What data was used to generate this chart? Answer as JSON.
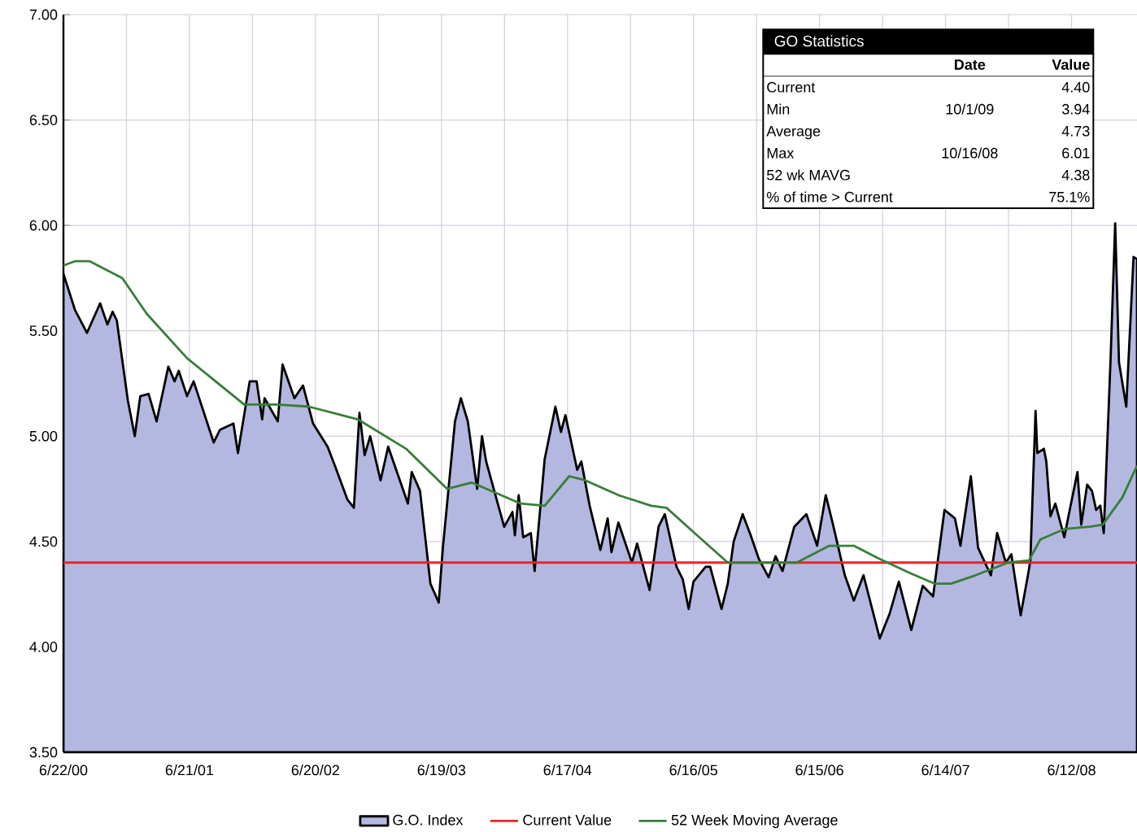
{
  "chart_data": {
    "type": "line",
    "xlim": [
      "2000-06-22",
      "2008-12-18"
    ],
    "ylim": [
      3.5,
      7.0
    ],
    "xticks": [
      {
        "value": "2000-06-22",
        "label": "6/22/00"
      },
      {
        "value": "2001-06-21",
        "label": "6/21/01"
      },
      {
        "value": "2002-06-20",
        "label": "6/20/02"
      },
      {
        "value": "2003-06-19",
        "label": "6/19/03"
      },
      {
        "value": "2004-06-17",
        "label": "6/17/04"
      },
      {
        "value": "2005-06-16",
        "label": "6/16/05"
      },
      {
        "value": "2006-06-15",
        "label": "6/15/06"
      },
      {
        "value": "2007-06-14",
        "label": "6/14/07"
      },
      {
        "value": "2008-06-12",
        "label": "6/12/08"
      }
    ],
    "yticks": [
      {
        "value": 3.5,
        "label": "3.50"
      },
      {
        "value": 4.0,
        "label": "4.00"
      },
      {
        "value": 4.5,
        "label": "4.50"
      },
      {
        "value": 5.0,
        "label": "5.00"
      },
      {
        "value": 5.5,
        "label": "5.50"
      },
      {
        "value": 6.0,
        "label": "6.00"
      },
      {
        "value": 6.5,
        "label": "6.50"
      },
      {
        "value": 7.0,
        "label": "7.00"
      }
    ],
    "grid": true,
    "legend": "bottom",
    "ref_lines": [
      {
        "axis": "y",
        "value": 4.4,
        "label": "Current Value",
        "color": "#e8252a"
      }
    ],
    "series": [
      {
        "name": "G.O. Index",
        "type": "area",
        "color": "#b4b8e0",
        "x": [
          "2000-06-22",
          "2000-07-25",
          "2000-08-29",
          "2000-10-06",
          "2000-10-27",
          "2000-11-11",
          "2000-11-23",
          "2000-12-25",
          "2001-01-14",
          "2001-01-30",
          "2001-02-23",
          "2001-03-18",
          "2001-04-21",
          "2001-05-09",
          "2001-05-21",
          "2001-06-14",
          "2001-07-03",
          "2001-08-30",
          "2001-09-17",
          "2001-10-26",
          "2001-11-08",
          "2001-12-12",
          "2002-01-01",
          "2002-01-17",
          "2002-01-24",
          "2002-03-03",
          "2002-03-17",
          "2002-04-20",
          "2002-05-15",
          "2002-06-13",
          "2002-07-25",
          "2002-08-15",
          "2002-09-20",
          "2002-10-09",
          "2002-10-25",
          "2002-11-09",
          "2002-11-25",
          "2002-12-25",
          "2003-01-16",
          "2003-03-14",
          "2003-03-25",
          "2003-04-18",
          "2003-05-18",
          "2003-06-11",
          "2003-06-23",
          "2003-07-28",
          "2003-08-14",
          "2003-09-03",
          "2003-09-30",
          "2003-10-14",
          "2003-10-26",
          "2003-12-17",
          "2004-01-10",
          "2004-01-17",
          "2004-01-28",
          "2004-02-10",
          "2004-03-03",
          "2004-03-14",
          "2004-04-12",
          "2004-05-13",
          "2004-05-29",
          "2004-06-11",
          "2004-07-15",
          "2004-07-27",
          "2004-08-20",
          "2004-09-20",
          "2004-10-11",
          "2004-10-22",
          "2004-11-11",
          "2004-12-20",
          "2005-01-04",
          "2005-02-09",
          "2005-03-07",
          "2005-03-25",
          "2005-04-28",
          "2005-05-16",
          "2005-06-02",
          "2005-06-16",
          "2005-07-21",
          "2005-08-03",
          "2005-09-05",
          "2005-09-23",
          "2005-10-10",
          "2005-11-05",
          "2005-11-28",
          "2005-12-21",
          "2006-01-19",
          "2006-02-08",
          "2006-02-28",
          "2006-04-03",
          "2006-05-08",
          "2006-06-08",
          "2006-07-03",
          "2006-07-24",
          "2006-08-27",
          "2006-09-22",
          "2006-10-20",
          "2006-12-06",
          "2007-01-04",
          "2007-01-30",
          "2007-03-07",
          "2007-04-09",
          "2007-05-09",
          "2007-06-11",
          "2007-07-11",
          "2007-07-27",
          "2007-08-26",
          "2007-09-16",
          "2007-10-23",
          "2007-11-10",
          "2007-12-05",
          "2007-12-21",
          "2008-01-17",
          "2008-02-07",
          "2008-02-14",
          "2008-02-29",
          "2008-03-05",
          "2008-03-24",
          "2008-03-31",
          "2008-04-12",
          "2008-04-26",
          "2008-05-22",
          "2008-06-03",
          "2008-06-29",
          "2008-07-10",
          "2008-07-27",
          "2008-08-10",
          "2008-08-22",
          "2008-09-03",
          "2008-09-13",
          "2008-10-03",
          "2008-10-16",
          "2008-10-27",
          "2008-11-17",
          "2008-12-08",
          "2008-12-18"
        ],
        "values": [
          5.77,
          5.6,
          5.49,
          5.63,
          5.53,
          5.59,
          5.55,
          5.17,
          5.0,
          5.19,
          5.2,
          5.07,
          5.33,
          5.26,
          5.31,
          5.19,
          5.26,
          4.97,
          5.03,
          5.06,
          4.92,
          5.26,
          5.26,
          5.08,
          5.18,
          5.07,
          5.34,
          5.18,
          5.24,
          5.06,
          4.95,
          4.86,
          4.7,
          4.66,
          5.11,
          4.91,
          5.0,
          4.79,
          4.95,
          4.68,
          4.83,
          4.74,
          4.3,
          4.21,
          4.47,
          5.07,
          5.18,
          5.07,
          4.75,
          5.0,
          4.88,
          4.57,
          4.64,
          4.53,
          4.72,
          4.52,
          4.54,
          4.36,
          4.89,
          5.14,
          5.02,
          5.1,
          4.84,
          4.88,
          4.67,
          4.46,
          4.61,
          4.45,
          4.59,
          4.4,
          4.49,
          4.27,
          4.57,
          4.63,
          4.38,
          4.32,
          4.18,
          4.31,
          4.38,
          4.38,
          4.18,
          4.3,
          4.5,
          4.63,
          4.53,
          4.42,
          4.33,
          4.43,
          4.36,
          4.57,
          4.63,
          4.48,
          4.72,
          4.58,
          4.34,
          4.22,
          4.34,
          4.04,
          4.16,
          4.31,
          4.08,
          4.29,
          4.24,
          4.65,
          4.61,
          4.48,
          4.81,
          4.47,
          4.34,
          4.54,
          4.4,
          4.44,
          4.15,
          4.34,
          4.41,
          5.12,
          4.92,
          4.94,
          4.88,
          4.62,
          4.68,
          4.52,
          4.62,
          4.83,
          4.58,
          4.77,
          4.74,
          4.65,
          4.67,
          4.54,
          5.38,
          6.01,
          5.35,
          5.14,
          5.85,
          5.84
        ]
      },
      {
        "name": "52 Week Moving Average",
        "type": "line",
        "color": "#3a7d3a",
        "x": [
          "2000-06-22",
          "2000-07-25",
          "2000-09-06",
          "2000-12-09",
          "2001-02-18",
          "2001-06-14",
          "2001-11-26",
          "2002-02-28",
          "2002-06-01",
          "2002-10-20",
          "2003-03-09",
          "2003-07-05",
          "2003-09-14",
          "2003-11-24",
          "2004-02-03",
          "2004-04-12",
          "2004-06-22",
          "2004-08-08",
          "2004-11-11",
          "2005-02-14",
          "2005-03-30",
          "2005-07-03",
          "2005-09-23",
          "2006-01-08",
          "2006-04-10",
          "2006-07-13",
          "2006-09-22",
          "2006-12-02",
          "2007-03-04",
          "2007-05-14",
          "2007-06-30",
          "2007-09-09",
          "2007-12-12",
          "2008-02-10",
          "2008-03-14",
          "2008-05-24",
          "2008-08-03",
          "2008-09-10",
          "2008-11-06",
          "2008-12-18"
        ],
        "values": [
          5.81,
          5.83,
          5.83,
          5.75,
          5.58,
          5.37,
          5.15,
          5.15,
          5.14,
          5.08,
          4.94,
          4.75,
          4.78,
          4.73,
          4.68,
          4.67,
          4.81,
          4.79,
          4.72,
          4.67,
          4.66,
          4.52,
          4.4,
          4.4,
          4.4,
          4.48,
          4.48,
          4.42,
          4.35,
          4.3,
          4.3,
          4.34,
          4.4,
          4.41,
          4.51,
          4.56,
          4.57,
          4.58,
          4.71,
          4.86
        ]
      }
    ],
    "annotations": [
      "GO Statistics",
      "Date",
      "Value",
      "Current",
      "4.40",
      "Min",
      "10/1/09",
      "3.94",
      "Average",
      "4.73",
      "Max",
      "10/16/08",
      "6.01",
      "52 wk MAVG",
      "4.38",
      "% of time > Current",
      "75.1%"
    ]
  }
}
